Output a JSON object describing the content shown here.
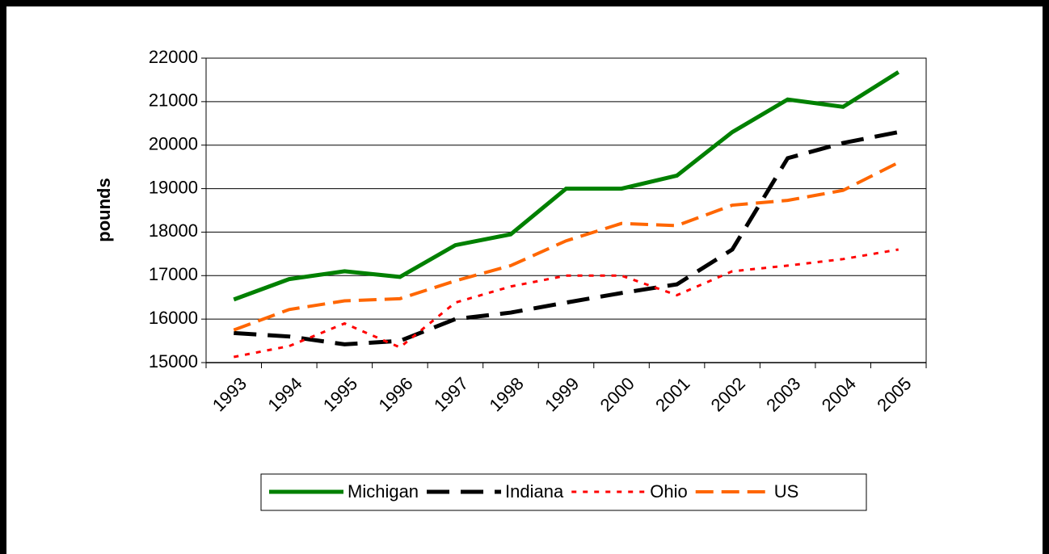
{
  "chart_data": {
    "type": "line",
    "y_label": "pounds",
    "categories": [
      "1993",
      "1994",
      "1995",
      "1996",
      "1997",
      "1998",
      "1999",
      "2000",
      "2001",
      "2002",
      "2003",
      "2004",
      "2005"
    ],
    "series": [
      {
        "name": "Michigan",
        "color": "#008000",
        "dash": "solid",
        "values": [
          16450,
          16920,
          17100,
          16970,
          17700,
          17950,
          19000,
          19000,
          19300,
          20300,
          21050,
          20880,
          21680
        ]
      },
      {
        "name": "Indiana",
        "color": "#000000",
        "dash": "longdash",
        "values": [
          15680,
          15600,
          15420,
          15500,
          16000,
          16150,
          16380,
          16600,
          16800,
          17600,
          19700,
          20050,
          20300
        ]
      },
      {
        "name": "Ohio",
        "color": "#ff0000",
        "dash": "dot",
        "values": [
          15130,
          15380,
          15900,
          15350,
          16380,
          16750,
          17000,
          17000,
          16550,
          17100,
          17230,
          17380,
          17600
        ]
      },
      {
        "name": "US",
        "color": "#ff6600",
        "dash": "dash",
        "values": [
          15750,
          16220,
          16420,
          16470,
          16880,
          17230,
          17800,
          18200,
          18150,
          18620,
          18730,
          18960,
          19600
        ]
      }
    ],
    "ylim": [
      15000,
      22000
    ],
    "yticks": [
      15000,
      16000,
      17000,
      18000,
      19000,
      20000,
      21000,
      22000
    ],
    "grid": true,
    "legend": "bottom"
  }
}
